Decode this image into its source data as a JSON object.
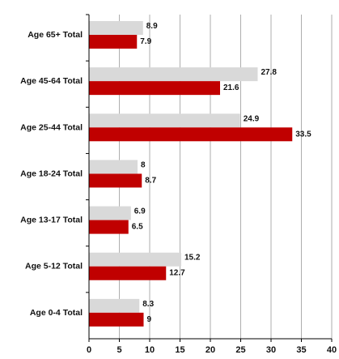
{
  "chart_data": {
    "type": "bar",
    "orientation": "horizontal",
    "categories": [
      "Age 65+ Total",
      "Age 45-64 Total",
      "Age 25-44 Total",
      "Age 18-24 Total",
      "Age 13-17 Total",
      "Age 5-12 Total",
      "Age 0-4 Total"
    ],
    "series": [
      {
        "values": [
          8.9,
          27.8,
          24.9,
          8,
          6.9,
          15.2,
          8.3
        ],
        "value_labels": [
          "8.9",
          "27.8",
          "24.9",
          "8",
          "6.9",
          "15.2",
          "8.3"
        ],
        "color": "#d9d9d9"
      },
      {
        "values": [
          7.9,
          21.6,
          33.5,
          8.7,
          6.5,
          12.7,
          9
        ],
        "value_labels": [
          "7.9",
          "21.6",
          "33.5",
          "8.7",
          "6.5",
          "12.7",
          "9"
        ],
        "color": "#c00000"
      }
    ],
    "x_ticks": [
      "0",
      "5",
      "10",
      "15",
      "20",
      "25",
      "30",
      "35",
      "40"
    ],
    "xlim": [
      0,
      40
    ],
    "grid": "vertical",
    "legend": "none",
    "title": "",
    "xlabel": "",
    "ylabel": ""
  },
  "colors": {
    "grid": "#9a9a9a",
    "axis": "#000000",
    "text": "#111111",
    "background": "#ffffff"
  }
}
